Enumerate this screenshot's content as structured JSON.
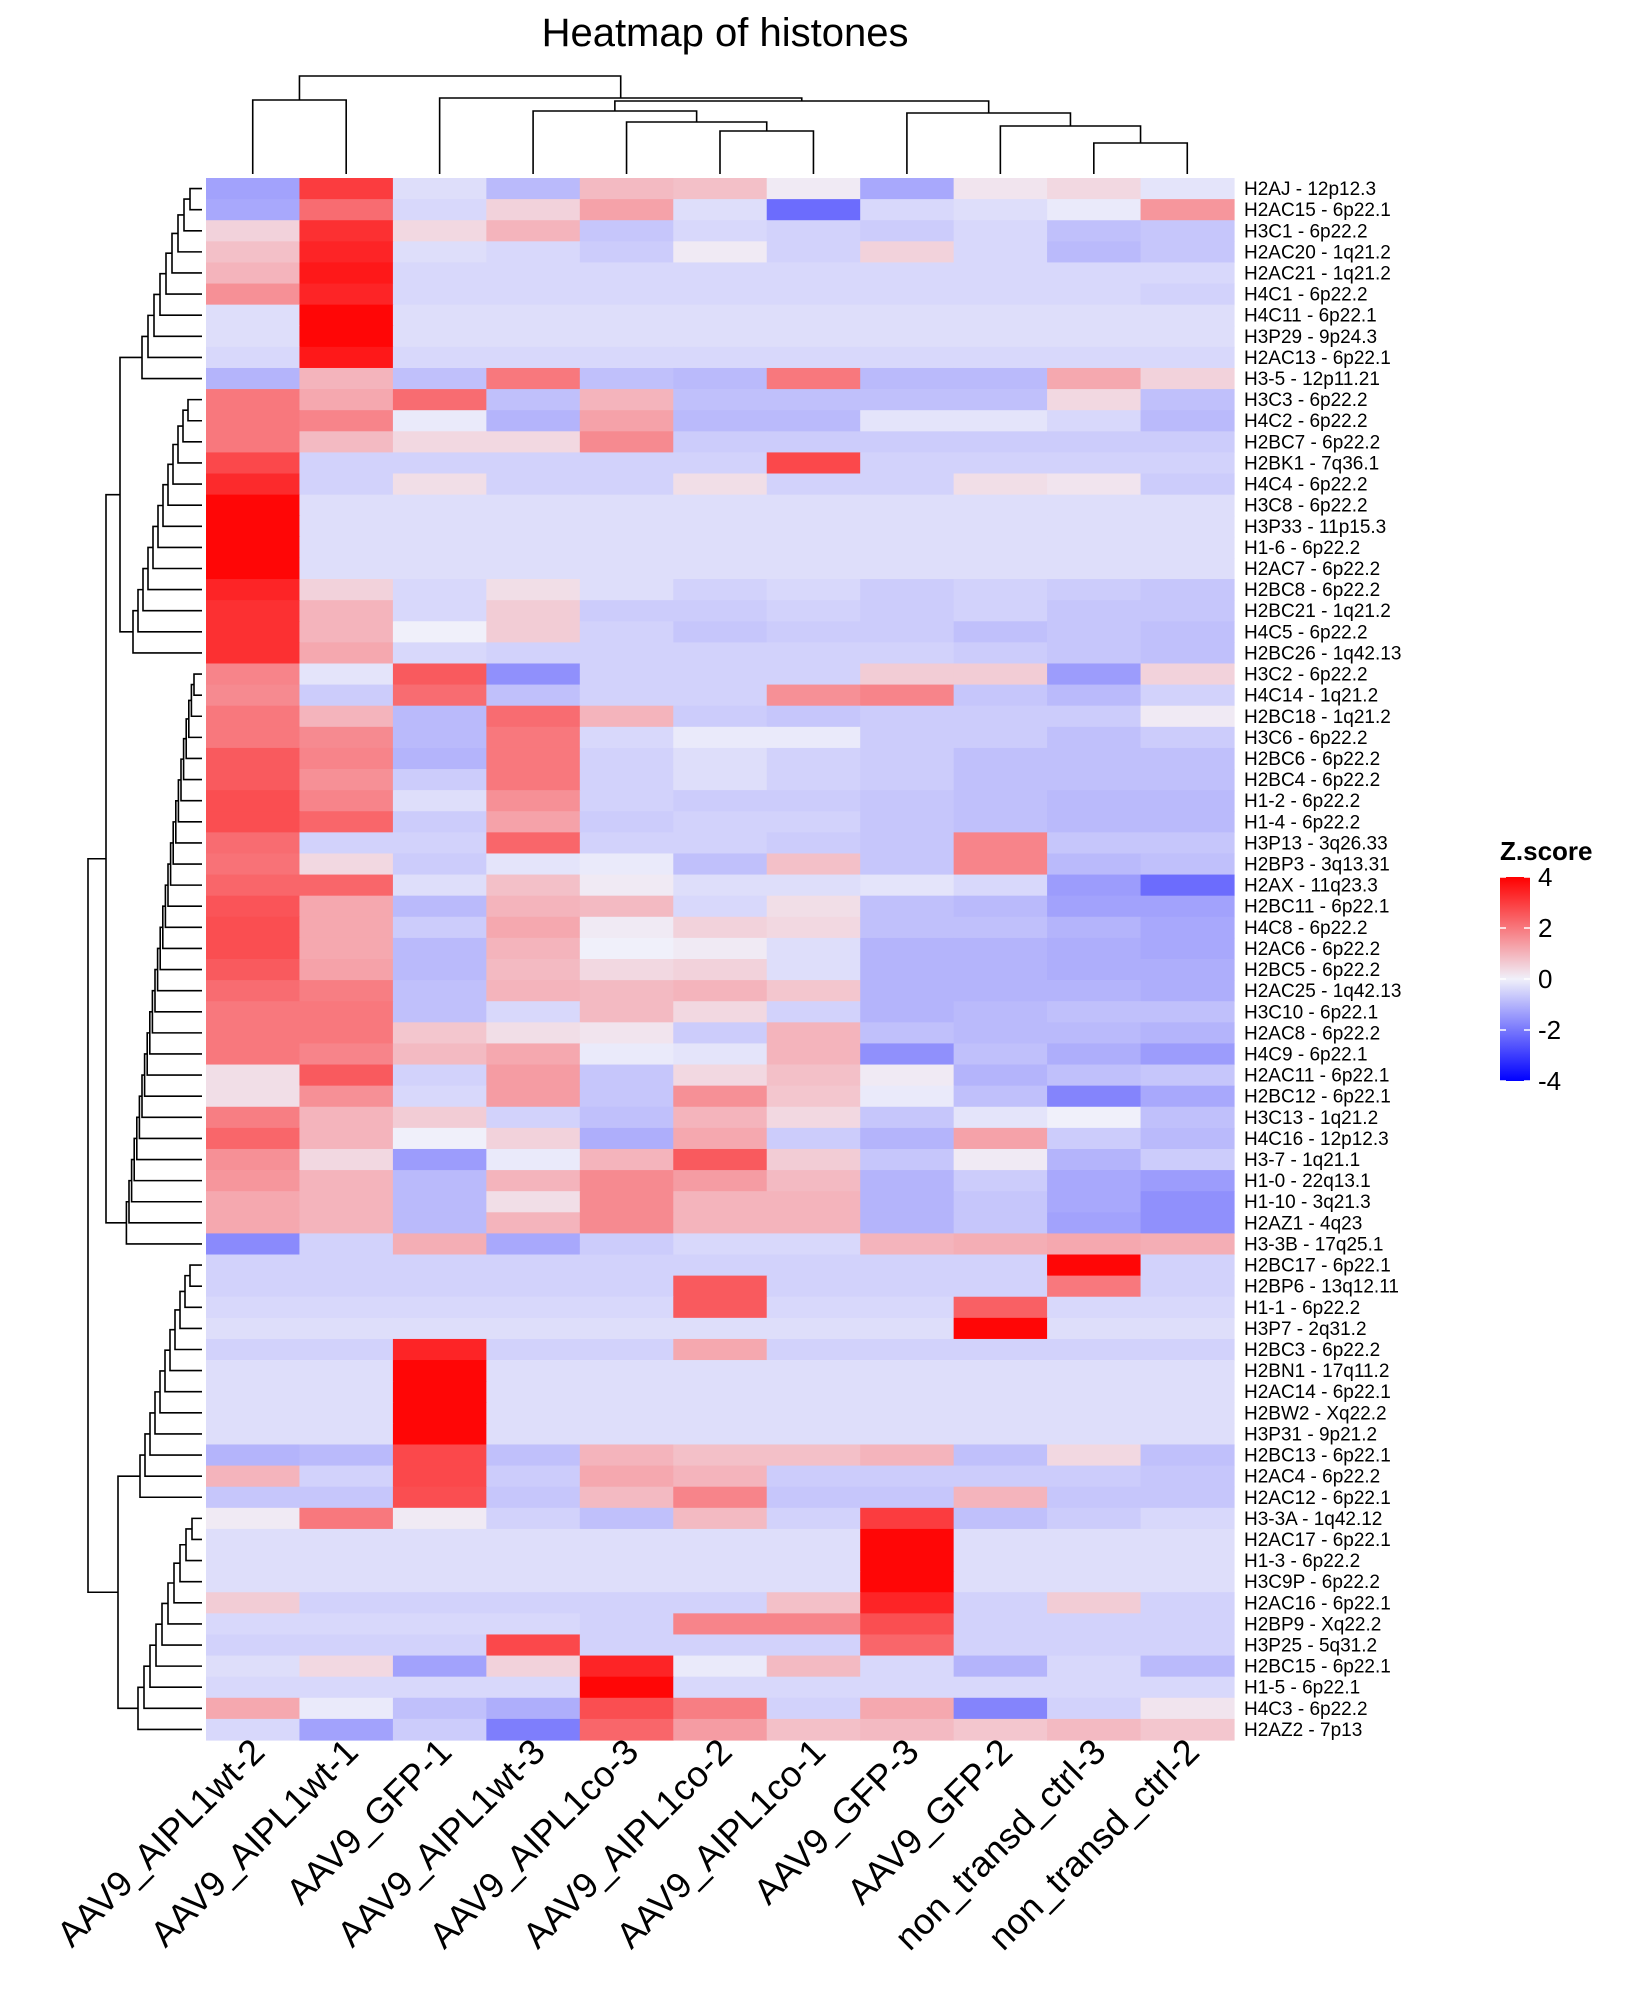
{
  "chart_data": {
    "type": "heatmap",
    "title": "Heatmap of histones",
    "columns": [
      "AAV9_AIPL1wt-2",
      "AAV9_AIPL1wt-1",
      "AAV9_GFP-1",
      "AAV9_AIPL1wt-3",
      "AAV9_AIPL1co-3",
      "AAV9_AIPL1co-2",
      "AAV9_AIPL1co-1",
      "AAV9_GFP-3",
      "AAV9_GFP-2",
      "non_transd_ctrl-3",
      "non_transd_ctrl-2"
    ],
    "rows": [
      "H2AJ - 12p12.3",
      "H2AC15 - 6p22.1",
      "H3C1 - 6p22.2",
      "H2AC20 - 1q21.2",
      "H2AC21 - 1q21.2",
      "H4C1 - 6p22.2",
      "H4C11 - 6p22.1",
      "H3P29 - 9p24.3",
      "H2AC13 - 6p22.1",
      "H3-5 - 12p11.21",
      "H3C3 - 6p22.2",
      "H4C2 - 6p22.2",
      "H2BC7 - 6p22.2",
      "H2BK1 - 7q36.1",
      "H4C4 - 6p22.2",
      "H3C8 - 6p22.2",
      "H3P33 - 11p15.3",
      "H1-6 - 6p22.2",
      "H2AC7 - 6p22.2",
      "H2BC8 - 6p22.2",
      "H2BC21 - 1q21.2",
      "H4C5 - 6p22.2",
      "H2BC26 - 1q42.13",
      "H3C2 - 6p22.2",
      "H4C14 - 1q21.2",
      "H2BC18 - 1q21.2",
      "H3C6 - 6p22.2",
      "H2BC6 - 6p22.2",
      "H2BC4 - 6p22.2",
      "H1-2 - 6p22.2",
      "H1-4 - 6p22.2",
      "H3P13 - 3q26.33",
      "H2BP3 - 3q13.31",
      "H2AX - 11q23.3",
      "H2BC11 - 6p22.1",
      "H4C8 - 6p22.2",
      "H2AC6 - 6p22.2",
      "H2BC5 - 6p22.2",
      "H2AC25 - 1q42.13",
      "H3C10 - 6p22.1",
      "H2AC8 - 6p22.2",
      "H4C9 - 6p22.1",
      "H2AC11 - 6p22.1",
      "H2BC12 - 6p22.1",
      "H3C13 - 1q21.2",
      "H4C16 - 12p12.3",
      "H3-7 - 1q21.1",
      "H1-0 - 22q13.1",
      "H1-10 - 3q21.3",
      "H2AZ1 - 4q23",
      "H3-3B - 17q25.1",
      "H2BC17 - 6p22.1",
      "H2BP6 - 13q12.11",
      "H1-1 - 6p22.2",
      "H3P7 - 2q31.2",
      "H2BC3 - 6p22.2",
      "H2BN1 - 17q11.2",
      "H2AC14 - 6p22.1",
      "H2BW2 - Xq22.2",
      "H3P31 - 9p21.2",
      "H2BC13 - 6p22.1",
      "H2AC4 - 6p22.2",
      "H2AC12 - 6p22.1",
      "H3-3A - 1q42.12",
      "H2AC17 - 6p22.1",
      "H1-3 - 6p22.2",
      "H3C9P - 6p22.2",
      "H2AC16 - 6p22.1",
      "H2BP9 - Xq22.2",
      "H3P25 - 5q31.2",
      "H2BC15 - 6p22.1",
      "H1-5 - 6p22.1",
      "H4C3 - 6p22.2",
      "H2AZ2 - 7p13"
    ],
    "values": [
      [
        -1.3,
        3.0,
        -0.3,
        -0.9,
        0.9,
        0.8,
        0.1,
        -1.2,
        0.2,
        0.4,
        -0.2
      ],
      [
        -1.2,
        2.2,
        -0.4,
        0.5,
        1.3,
        -0.3,
        -2.2,
        -0.4,
        -0.3,
        -0.1,
        1.5
      ],
      [
        0.5,
        3.2,
        0.4,
        1.0,
        -0.7,
        -0.4,
        -0.5,
        -0.6,
        -0.4,
        -0.8,
        -0.7
      ],
      [
        0.8,
        3.4,
        -0.3,
        -0.4,
        -0.6,
        0.1,
        -0.5,
        0.5,
        -0.4,
        -0.9,
        -0.7
      ],
      [
        1.0,
        3.6,
        -0.4,
        -0.4,
        -0.4,
        -0.4,
        -0.4,
        -0.4,
        -0.4,
        -0.4,
        -0.4
      ],
      [
        1.6,
        3.4,
        -0.4,
        -0.4,
        -0.4,
        -0.4,
        -0.4,
        -0.4,
        -0.4,
        -0.4,
        -0.5
      ],
      [
        -0.3,
        3.9,
        -0.3,
        -0.3,
        -0.3,
        -0.3,
        -0.3,
        -0.3,
        -0.3,
        -0.3,
        -0.3
      ],
      [
        -0.3,
        3.9,
        -0.3,
        -0.3,
        -0.3,
        -0.3,
        -0.3,
        -0.3,
        -0.3,
        -0.3,
        -0.3
      ],
      [
        -0.4,
        3.6,
        -0.4,
        -0.4,
        -0.4,
        -0.4,
        -0.4,
        -0.4,
        -0.4,
        -0.4,
        -0.4
      ],
      [
        -1.0,
        1.0,
        -0.8,
        2.0,
        -0.8,
        -0.9,
        2.0,
        -0.9,
        -0.9,
        1.2,
        0.5
      ],
      [
        2.0,
        1.2,
        2.2,
        -0.8,
        1.0,
        -0.8,
        -0.8,
        -0.8,
        -0.8,
        0.4,
        -0.8
      ],
      [
        2.0,
        1.8,
        -0.1,
        -1.0,
        1.3,
        -0.9,
        -0.9,
        -0.2,
        -0.2,
        -0.4,
        -0.9
      ],
      [
        2.0,
        0.9,
        0.4,
        0.4,
        1.7,
        -0.6,
        -0.6,
        -0.6,
        -0.6,
        -0.6,
        -0.6
      ],
      [
        2.8,
        -0.5,
        -0.5,
        -0.5,
        -0.5,
        -0.5,
        2.8,
        -0.5,
        -0.5,
        -0.5,
        -0.5
      ],
      [
        3.3,
        -0.5,
        0.3,
        -0.5,
        -0.5,
        0.3,
        -0.5,
        -0.5,
        0.3,
        0.2,
        -0.6
      ],
      [
        3.9,
        -0.3,
        -0.3,
        -0.3,
        -0.3,
        -0.3,
        -0.3,
        -0.3,
        -0.3,
        -0.3,
        -0.3
      ],
      [
        3.9,
        -0.3,
        -0.3,
        -0.3,
        -0.3,
        -0.3,
        -0.3,
        -0.3,
        -0.3,
        -0.3,
        -0.3
      ],
      [
        3.9,
        -0.3,
        -0.3,
        -0.3,
        -0.3,
        -0.3,
        -0.3,
        -0.3,
        -0.3,
        -0.3,
        -0.3
      ],
      [
        3.9,
        -0.3,
        -0.3,
        -0.3,
        -0.3,
        -0.3,
        -0.3,
        -0.3,
        -0.3,
        -0.3,
        -0.3
      ],
      [
        3.4,
        0.5,
        -0.4,
        0.3,
        -0.3,
        -0.5,
        -0.4,
        -0.6,
        -0.5,
        -0.6,
        -0.7
      ],
      [
        3.2,
        1.0,
        -0.4,
        0.6,
        -0.6,
        -0.6,
        -0.5,
        -0.6,
        -0.5,
        -0.7,
        -0.7
      ],
      [
        3.2,
        1.0,
        0.0,
        0.6,
        -0.5,
        -0.7,
        -0.6,
        -0.6,
        -0.8,
        -0.7,
        -0.8
      ],
      [
        3.2,
        1.2,
        -0.4,
        -0.5,
        -0.5,
        -0.5,
        -0.5,
        -0.5,
        -0.6,
        -0.7,
        -0.8
      ],
      [
        1.8,
        -0.2,
        2.5,
        -1.6,
        -0.5,
        -0.5,
        -0.5,
        0.6,
        0.6,
        -1.4,
        0.5
      ],
      [
        1.7,
        -0.6,
        2.2,
        -0.8,
        -0.5,
        -0.5,
        1.6,
        1.8,
        -0.7,
        -0.9,
        -0.5
      ],
      [
        2.0,
        1.0,
        -0.9,
        2.2,
        1.0,
        -0.6,
        -0.7,
        -0.6,
        -0.6,
        -0.6,
        0.1
      ],
      [
        2.0,
        1.7,
        -0.9,
        2.0,
        -0.4,
        -0.1,
        -0.1,
        -0.6,
        -0.6,
        -0.8,
        -0.6
      ],
      [
        2.5,
        1.8,
        -1.0,
        2.0,
        -0.5,
        -0.3,
        -0.5,
        -0.6,
        -0.8,
        -0.8,
        -0.8
      ],
      [
        2.5,
        1.6,
        -0.6,
        2.0,
        -0.5,
        -0.3,
        -0.5,
        -0.6,
        -0.8,
        -0.8,
        -0.8
      ],
      [
        2.7,
        1.8,
        -0.3,
        1.6,
        -0.5,
        -0.6,
        -0.6,
        -0.7,
        -0.8,
        -0.9,
        -0.9
      ],
      [
        2.7,
        2.3,
        -0.6,
        1.3,
        -0.6,
        -0.5,
        -0.5,
        -0.7,
        -0.8,
        -0.9,
        -0.9
      ],
      [
        2.2,
        -0.5,
        -0.5,
        2.3,
        -0.5,
        -0.5,
        -0.6,
        -0.7,
        1.8,
        -0.7,
        -0.7
      ],
      [
        2.1,
        0.4,
        -0.6,
        -0.2,
        -0.1,
        -0.8,
        0.8,
        -0.7,
        1.8,
        -0.9,
        -0.8
      ],
      [
        2.3,
        2.3,
        -0.3,
        0.8,
        0.1,
        -0.3,
        -0.3,
        -0.2,
        -0.4,
        -1.4,
        -2.2
      ],
      [
        2.6,
        1.2,
        -0.9,
        1.0,
        0.9,
        -0.4,
        0.3,
        -0.8,
        -0.9,
        -1.3,
        -1.3
      ],
      [
        2.7,
        1.2,
        -0.6,
        1.2,
        0.1,
        0.5,
        0.4,
        -0.8,
        -0.8,
        -1.0,
        -1.2
      ],
      [
        2.7,
        1.2,
        -0.9,
        1.0,
        0.0,
        0.1,
        -0.3,
        -1.0,
        -1.0,
        -1.1,
        -1.2
      ],
      [
        2.5,
        1.3,
        -0.9,
        0.9,
        0.4,
        0.5,
        -0.3,
        -1.0,
        -1.0,
        -1.1,
        -1.1
      ],
      [
        2.2,
        1.9,
        -0.8,
        1.0,
        0.9,
        1.0,
        0.7,
        -1.0,
        -1.0,
        -1.0,
        -1.1
      ],
      [
        2.0,
        2.0,
        -0.8,
        -0.4,
        0.9,
        0.4,
        -0.5,
        -1.0,
        -0.9,
        -0.8,
        -0.8
      ],
      [
        2.0,
        2.0,
        0.7,
        0.3,
        0.2,
        -0.6,
        1.0,
        -0.8,
        -0.9,
        -0.9,
        -1.0
      ],
      [
        2.0,
        1.8,
        0.9,
        1.2,
        -0.1,
        -0.2,
        1.0,
        -1.6,
        -0.8,
        -1.1,
        -1.4
      ],
      [
        0.3,
        2.5,
        -0.5,
        1.4,
        -0.7,
        0.4,
        0.8,
        0.1,
        -1.0,
        -0.8,
        -0.7
      ],
      [
        0.3,
        1.6,
        -0.4,
        1.4,
        -0.7,
        1.6,
        0.7,
        -0.1,
        -0.8,
        -1.8,
        -1.2
      ],
      [
        1.9,
        1.0,
        0.6,
        -0.5,
        -0.8,
        1.0,
        0.4,
        -0.7,
        -0.2,
        0.0,
        -0.8
      ],
      [
        2.3,
        1.0,
        0.0,
        0.5,
        -1.1,
        1.2,
        -0.6,
        -1.0,
        1.3,
        -0.6,
        -0.9
      ],
      [
        1.6,
        0.4,
        -1.4,
        -0.1,
        1.0,
        2.5,
        0.6,
        -0.7,
        0.1,
        -1.0,
        -0.6
      ],
      [
        1.5,
        1.0,
        -0.9,
        1.0,
        1.7,
        1.4,
        0.9,
        -1.0,
        -0.6,
        -1.2,
        -1.4
      ],
      [
        1.2,
        1.0,
        -0.9,
        0.3,
        1.7,
        1.0,
        1.0,
        -1.0,
        -0.7,
        -1.2,
        -1.6
      ],
      [
        1.2,
        1.0,
        -0.9,
        1.0,
        1.7,
        1.0,
        1.0,
        -1.0,
        -0.7,
        -1.3,
        -1.6
      ],
      [
        -1.7,
        -0.5,
        1.1,
        -1.2,
        -0.6,
        -0.4,
        -0.4,
        1.0,
        1.1,
        1.2,
        1.1
      ],
      [
        -0.5,
        -0.5,
        -0.5,
        -0.5,
        -0.5,
        -0.5,
        -0.5,
        -0.5,
        -0.5,
        3.9,
        -0.5
      ],
      [
        -0.5,
        -0.5,
        -0.5,
        -0.5,
        -0.5,
        2.5,
        -0.5,
        -0.5,
        -0.5,
        2.0,
        -0.5
      ],
      [
        -0.4,
        -0.4,
        -0.4,
        -0.4,
        -0.4,
        2.5,
        -0.4,
        -0.4,
        2.4,
        -0.4,
        -0.4
      ],
      [
        -0.3,
        -0.3,
        -0.3,
        -0.3,
        -0.3,
        -0.3,
        -0.3,
        -0.3,
        3.9,
        -0.3,
        -0.3
      ],
      [
        -0.5,
        -0.5,
        3.4,
        -0.5,
        -0.5,
        1.2,
        -0.5,
        -0.5,
        -0.5,
        -0.5,
        -0.5
      ],
      [
        -0.3,
        -0.3,
        3.9,
        -0.3,
        -0.3,
        -0.3,
        -0.3,
        -0.3,
        -0.3,
        -0.3,
        -0.3
      ],
      [
        -0.3,
        -0.3,
        3.9,
        -0.3,
        -0.3,
        -0.3,
        -0.3,
        -0.3,
        -0.3,
        -0.3,
        -0.3
      ],
      [
        -0.3,
        -0.3,
        3.9,
        -0.3,
        -0.3,
        -0.3,
        -0.3,
        -0.3,
        -0.3,
        -0.3,
        -0.3
      ],
      [
        -0.3,
        -0.3,
        3.9,
        -0.3,
        -0.3,
        -0.3,
        -0.3,
        -0.3,
        -0.3,
        -0.3,
        -0.3
      ],
      [
        -1.0,
        -0.9,
        2.8,
        -0.8,
        1.0,
        0.8,
        0.8,
        1.0,
        -0.8,
        0.4,
        -0.8
      ],
      [
        1.0,
        -0.5,
        2.8,
        -0.6,
        1.2,
        1.0,
        -0.6,
        -0.6,
        -0.6,
        -0.6,
        -0.7
      ],
      [
        -0.7,
        -0.7,
        2.7,
        -0.7,
        0.9,
        1.8,
        -0.7,
        -0.7,
        1.0,
        -0.7,
        -0.7
      ],
      [
        0.1,
        2.0,
        0.1,
        -0.5,
        -0.8,
        0.9,
        -0.5,
        3.0,
        -0.8,
        -0.6,
        -0.4
      ],
      [
        -0.3,
        -0.3,
        -0.3,
        -0.3,
        -0.3,
        -0.3,
        -0.3,
        3.9,
        -0.3,
        -0.3,
        -0.3
      ],
      [
        -0.3,
        -0.3,
        -0.3,
        -0.3,
        -0.3,
        -0.3,
        -0.3,
        3.9,
        -0.3,
        -0.3,
        -0.3
      ],
      [
        -0.3,
        -0.3,
        -0.3,
        -0.3,
        -0.3,
        -0.3,
        -0.3,
        3.9,
        -0.3,
        -0.3,
        -0.3
      ],
      [
        0.6,
        -0.5,
        -0.5,
        -0.5,
        -0.5,
        -0.5,
        0.8,
        3.4,
        -0.5,
        0.6,
        -0.5
      ],
      [
        -0.4,
        -0.4,
        -0.4,
        -0.4,
        -0.5,
        1.8,
        1.8,
        2.7,
        -0.5,
        -0.5,
        -0.5
      ],
      [
        -0.5,
        -0.5,
        -0.5,
        2.8,
        -0.5,
        -0.5,
        -0.5,
        2.3,
        -0.5,
        -0.5,
        -0.5
      ],
      [
        -0.3,
        0.4,
        -1.3,
        0.5,
        3.4,
        -0.1,
        0.9,
        -0.4,
        -1.0,
        -0.4,
        -0.9
      ],
      [
        -0.4,
        -0.4,
        -0.4,
        -0.4,
        3.9,
        -0.4,
        -0.4,
        -0.4,
        -0.4,
        -0.4,
        -0.4
      ],
      [
        1.2,
        -0.1,
        -0.8,
        -1.1,
        2.7,
        1.9,
        -0.5,
        1.2,
        -1.8,
        -0.5,
        0.2
      ],
      [
        -0.4,
        -1.3,
        -0.6,
        -1.9,
        2.3,
        1.4,
        0.8,
        0.9,
        0.7,
        0.9,
        0.7
      ]
    ],
    "color_scale": {
      "min": -4,
      "mid": 0,
      "max": 4,
      "low_color": "#0000ff",
      "mid_color": "#f0f0fa",
      "high_color": "#ff0000"
    },
    "legend": {
      "title": "Z.score",
      "ticks": [
        4,
        2,
        0,
        -2,
        -4
      ],
      "position": "right"
    },
    "col_dendrogram": [
      [
        [
          0,
          1
        ],
        [
          2,
          3
        ],
        [
          4,
          5
        ],
        [
          6
        ],
        [
          7,
          8
        ],
        [
          9,
          10
        ]
      ],
      "top"
    ],
    "row_dendrogram": "left"
  }
}
